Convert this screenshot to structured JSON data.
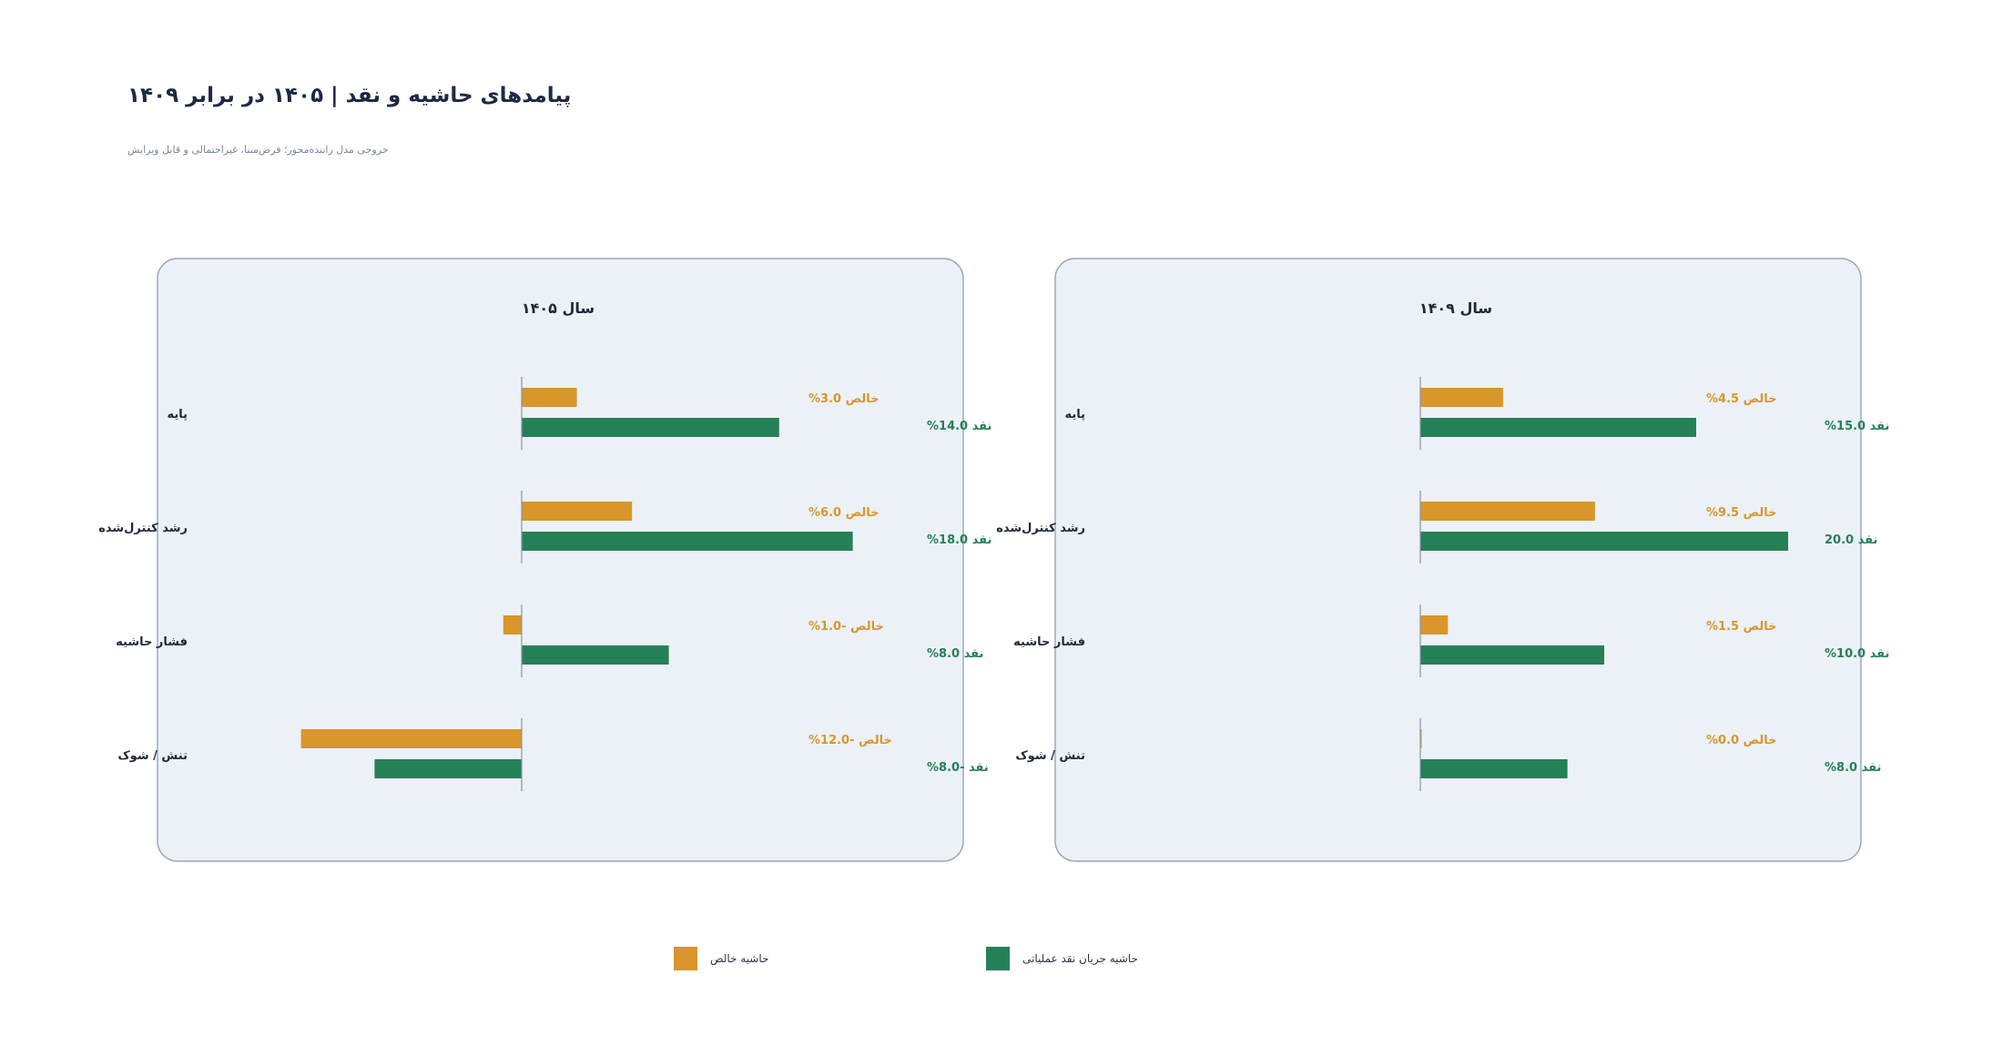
{
  "title": "پیامدهای حاشیه و نقد | ۱۴۰۵ در برابر ۱۴۰۹",
  "subtitle": "خروجی مدل راننده‌محور؛ فرض‌مبنا، غیراحتمالی و قابل ویرایش",
  "colors": {
    "net": "#d8962c",
    "cash": "#268057",
    "panel_bg": "#ecf1f7",
    "panel_border": "#97a6b6",
    "text": "#1f2937"
  },
  "legend": [
    {
      "label": "حاشیه خالص",
      "series": "net"
    },
    {
      "label": "حاشیه جریان نقد عملیاتی",
      "series": "cash"
    }
  ],
  "chart_data": [
    {
      "type": "bar",
      "orientation": "horizontal",
      "title": "سال ۱۴۰۵",
      "categories": [
        "پایه",
        "رشد کنترل‌شده",
        "فشار حاشیه",
        "تنش / شوک"
      ],
      "xlim": [
        -20,
        20
      ],
      "series": [
        {
          "name": "حاشیه خالص",
          "color_key": "net",
          "values": [
            3.0,
            6.0,
            -1.0,
            -12.0
          ],
          "data_labels": [
            "خالص 3.0%",
            "خالص 6.0%",
            "خالص -1.0%",
            "خالص -12.0%"
          ]
        },
        {
          "name": "حاشیه جریان نقد عملیاتی",
          "color_key": "cash",
          "values": [
            14.0,
            18.0,
            8.0,
            -8.0
          ],
          "data_labels": [
            "نقد 14.0%",
            "نقد 18.0%",
            "نقد 8.0%",
            "نقد -8.0%"
          ]
        }
      ]
    },
    {
      "type": "bar",
      "orientation": "horizontal",
      "title": "سال ۱۴۰۹",
      "categories": [
        "پایه",
        "رشد کنترل‌شده",
        "فشار حاشیه",
        "تنش / شوک"
      ],
      "xlim": [
        -20,
        20
      ],
      "series": [
        {
          "name": "حاشیه خالص",
          "color_key": "net",
          "values": [
            4.5,
            9.5,
            1.5,
            0.0
          ],
          "data_labels": [
            "خالص 4.5%",
            "خالص 9.5%",
            "خالص 1.5%",
            "خالص 0.0%"
          ]
        },
        {
          "name": "حاشیه جریان نقد عملیاتی",
          "color_key": "cash",
          "values": [
            15.0,
            20.0,
            10.0,
            8.0
          ],
          "data_labels": [
            "نقد 15.0%",
            "نقد 20.0",
            "نقد 10.0%",
            "نقد 8.0%"
          ]
        }
      ]
    }
  ]
}
